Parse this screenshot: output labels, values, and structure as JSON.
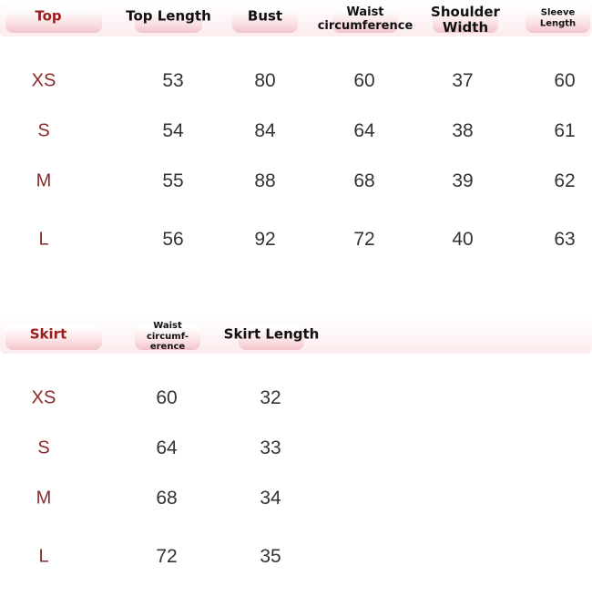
{
  "top_table": {
    "headers": [
      "Top",
      "Top Length",
      "Bust",
      "Waist circumference",
      "Shoulder Width",
      "Sleeve Length"
    ],
    "rows": [
      [
        "XS",
        "53",
        "80",
        "60",
        "37",
        "60"
      ],
      [
        "S",
        "54",
        "84",
        "64",
        "38",
        "61"
      ],
      [
        "M",
        "55",
        "88",
        "68",
        "39",
        "62"
      ],
      [
        "L",
        "56",
        "92",
        "72",
        "40",
        "63"
      ]
    ]
  },
  "skirt_table": {
    "headers": [
      "Skirt",
      "Waist circumf-erence",
      "Skirt Length"
    ],
    "rows": [
      [
        "XS",
        "60",
        "32"
      ],
      [
        "S",
        "64",
        "33"
      ],
      [
        "M",
        "68",
        "34"
      ],
      [
        "L",
        "72",
        "35"
      ]
    ]
  },
  "colors": {
    "accent": "#9b1c1c",
    "pill": "#f6d3d7"
  }
}
